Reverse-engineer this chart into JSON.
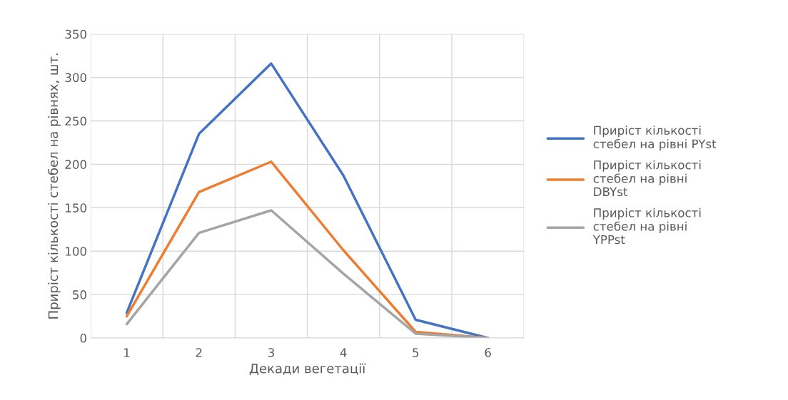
{
  "chart_data": {
    "type": "line",
    "xlabel": "Декади вегетації",
    "ylabel": "Приріст кількості стебел на рівнях, шт.",
    "categories": [
      "1",
      "2",
      "3",
      "4",
      "5",
      "6"
    ],
    "series": [
      {
        "name": "Приріст кількості стебел на рівні PYst",
        "color": "#4472c4",
        "values": [
          29,
          235,
          316,
          187,
          21,
          0
        ]
      },
      {
        "name": "Приріст кількості стебел на рівні DBYst",
        "color": "#ed7d31",
        "values": [
          25,
          168,
          203,
          101,
          7,
          0
        ]
      },
      {
        "name": "Приріст кількості стебел на рівні YPPst",
        "color": "#a5a5a5",
        "values": [
          16,
          121,
          147,
          74,
          5,
          0
        ]
      }
    ],
    "ylim": [
      0,
      350
    ],
    "yticks": [
      0,
      50,
      100,
      150,
      200,
      250,
      300,
      350
    ],
    "grid": true,
    "legend": "right",
    "marker": "none",
    "line_style": "solid"
  }
}
